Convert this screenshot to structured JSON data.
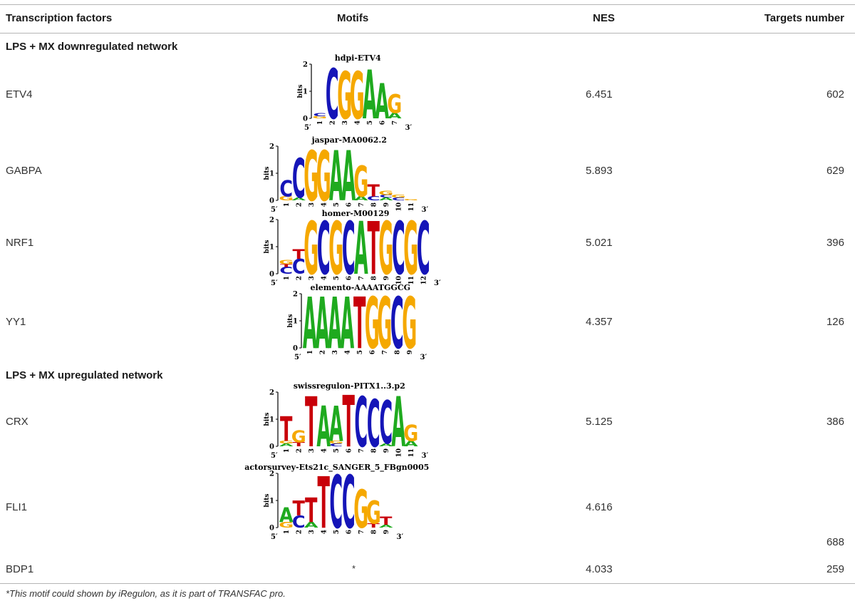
{
  "table": {
    "headers": {
      "tf": "Transcription factors",
      "motifs": "Motifs",
      "nes": "NES",
      "targets": "Targets number"
    },
    "sections": [
      {
        "title": "LPS + MX downregulated network"
      },
      {
        "title": "LPS + MX upregulated network"
      }
    ],
    "rows": [
      {
        "tf": "ETV4",
        "nes": "6.451",
        "targets": "602",
        "motif": {
          "title": "hdpi-ETV4",
          "ymax": "2",
          "stack": [
            [
              {
                "l": "G",
                "h": 0.08
              },
              {
                "l": "C",
                "h": 0.12
              }
            ],
            [
              {
                "l": "C",
                "h": 1.85
              }
            ],
            [
              {
                "l": "G",
                "h": 1.75
              }
            ],
            [
              {
                "l": "G",
                "h": 1.75
              }
            ],
            [
              {
                "l": "A",
                "h": 1.8
              }
            ],
            [
              {
                "l": "A",
                "h": 1.3
              }
            ],
            [
              {
                "l": "A",
                "h": 0.2
              },
              {
                "l": "G",
                "h": 0.7
              }
            ]
          ]
        }
      },
      {
        "tf": "GABPA",
        "nes": "5.893",
        "targets": "629",
        "motif": {
          "title": "jaspar-MA0062.2",
          "ymax": "2",
          "stack": [
            [
              {
                "l": "G",
                "h": 0.15
              },
              {
                "l": "C",
                "h": 0.6
              }
            ],
            [
              {
                "l": "A",
                "h": 0.1
              },
              {
                "l": "C",
                "h": 1.45
              }
            ],
            [
              {
                "l": "G",
                "h": 1.85
              }
            ],
            [
              {
                "l": "G",
                "h": 1.85
              }
            ],
            [
              {
                "l": "A",
                "h": 1.85
              }
            ],
            [
              {
                "l": "A",
                "h": 1.85
              }
            ],
            [
              {
                "l": "A",
                "h": 0.15
              },
              {
                "l": "G",
                "h": 1.15
              }
            ],
            [
              {
                "l": "C",
                "h": 0.15
              },
              {
                "l": "T",
                "h": 0.45
              }
            ],
            [
              {
                "l": "A",
                "h": 0.1
              },
              {
                "l": "C",
                "h": 0.1
              },
              {
                "l": "G",
                "h": 0.15
              }
            ],
            [
              {
                "l": "C",
                "h": 0.1
              },
              {
                "l": "G",
                "h": 0.1
              }
            ],
            [
              {
                "l": "G",
                "h": 0.05
              }
            ]
          ]
        }
      },
      {
        "tf": "NRF1",
        "nes": "5.021",
        "targets": "396",
        "motif": {
          "title": "homer-M00129",
          "ymax": "2",
          "stack": [
            [
              {
                "l": "C",
                "h": 0.25
              },
              {
                "l": "T",
                "h": 0.1
              },
              {
                "l": "G",
                "h": 0.15
              }
            ],
            [
              {
                "l": "C",
                "h": 0.55
              },
              {
                "l": "T",
                "h": 0.35
              }
            ],
            [
              {
                "l": "G",
                "h": 1.95
              }
            ],
            [
              {
                "l": "C",
                "h": 1.95
              }
            ],
            [
              {
                "l": "G",
                "h": 1.95
              }
            ],
            [
              {
                "l": "C",
                "h": 1.95
              }
            ],
            [
              {
                "l": "A",
                "h": 1.95
              }
            ],
            [
              {
                "l": "T",
                "h": 1.95
              }
            ],
            [
              {
                "l": "G",
                "h": 1.95
              }
            ],
            [
              {
                "l": "C",
                "h": 1.95
              }
            ],
            [
              {
                "l": "G",
                "h": 1.95
              }
            ],
            [
              {
                "l": "C",
                "h": 1.95
              }
            ]
          ]
        }
      },
      {
        "tf": "YY1",
        "nes": "4.357",
        "targets": "126",
        "motif": {
          "title": "elemento-AAAATGGCG",
          "ymax": "2",
          "stack": [
            [
              {
                "l": "A",
                "h": 1.9
              }
            ],
            [
              {
                "l": "A",
                "h": 1.9
              }
            ],
            [
              {
                "l": "A",
                "h": 1.9
              }
            ],
            [
              {
                "l": "A",
                "h": 1.9
              }
            ],
            [
              {
                "l": "T",
                "h": 1.9
              }
            ],
            [
              {
                "l": "G",
                "h": 1.9
              }
            ],
            [
              {
                "l": "G",
                "h": 1.9
              }
            ],
            [
              {
                "l": "C",
                "h": 1.9
              }
            ],
            [
              {
                "l": "G",
                "h": 1.9
              }
            ]
          ]
        }
      },
      {
        "tf": "CRX",
        "nes": "5.125",
        "targets": "386",
        "motif": {
          "title": "swissregulon-PITX1..3.p2",
          "ymax": "2",
          "stack": [
            [
              {
                "l": "A",
                "h": 0.1
              },
              {
                "l": "G",
                "h": 0.1
              },
              {
                "l": "T",
                "h": 0.9
              }
            ],
            [
              {
                "l": "T",
                "h": 0.15
              },
              {
                "l": "G",
                "h": 0.45
              }
            ],
            [
              {
                "l": "T",
                "h": 1.85
              }
            ],
            [
              {
                "l": "A",
                "h": 1.5
              }
            ],
            [
              {
                "l": "C",
                "h": 0.1
              },
              {
                "l": "G",
                "h": 0.1
              },
              {
                "l": "A",
                "h": 1.3
              }
            ],
            [
              {
                "l": "T",
                "h": 1.9
              }
            ],
            [
              {
                "l": "C",
                "h": 1.85
              }
            ],
            [
              {
                "l": "C",
                "h": 1.75
              }
            ],
            [
              {
                "l": "A",
                "h": 0.1
              },
              {
                "l": "C",
                "h": 1.6
              }
            ],
            [
              {
                "l": "A",
                "h": 1.85
              }
            ],
            [
              {
                "l": "A",
                "h": 0.2
              },
              {
                "l": "G",
                "h": 0.6
              }
            ]
          ]
        }
      },
      {
        "tf": "FLI1",
        "nes": "4.616",
        "targets": "688",
        "motif": {
          "title": "actorsurvey-Ets21c_SANGER_5_FBgn0005",
          "ymax": "2",
          "stack": [
            [
              {
                "l": "G",
                "h": 0.2
              },
              {
                "l": "A",
                "h": 0.55
              }
            ],
            [
              {
                "l": "C",
                "h": 0.45
              },
              {
                "l": "T",
                "h": 0.55
              }
            ],
            [
              {
                "l": "A",
                "h": 0.2
              },
              {
                "l": "T",
                "h": 0.9
              }
            ],
            [
              {
                "l": "T",
                "h": 1.9
              }
            ],
            [
              {
                "l": "C",
                "h": 1.95
              }
            ],
            [
              {
                "l": "C",
                "h": 1.95
              }
            ],
            [
              {
                "l": "G",
                "h": 1.4
              }
            ],
            [
              {
                "l": "T",
                "h": 0.15
              },
              {
                "l": "G",
                "h": 0.85
              }
            ],
            [
              {
                "l": "A",
                "h": 0.1
              },
              {
                "l": "T",
                "h": 0.3
              }
            ]
          ]
        }
      },
      {
        "tf": "BDP1",
        "nes": "4.033",
        "targets": "259",
        "motif_marker": "*"
      }
    ],
    "footnote": "*This motif could shown by iRegulon, as it is part of TRANSFAC pro."
  },
  "logo_common": {
    "axis_label": "bits",
    "tick_mid": "1",
    "tick_zero": "0",
    "five_prime": "5′",
    "three_prime": "3′"
  },
  "colors": {
    "A": "#1faa1f",
    "C": "#1515b8",
    "G": "#f5a800",
    "T": "#c8000a",
    "rule": "#b5b5b5"
  }
}
